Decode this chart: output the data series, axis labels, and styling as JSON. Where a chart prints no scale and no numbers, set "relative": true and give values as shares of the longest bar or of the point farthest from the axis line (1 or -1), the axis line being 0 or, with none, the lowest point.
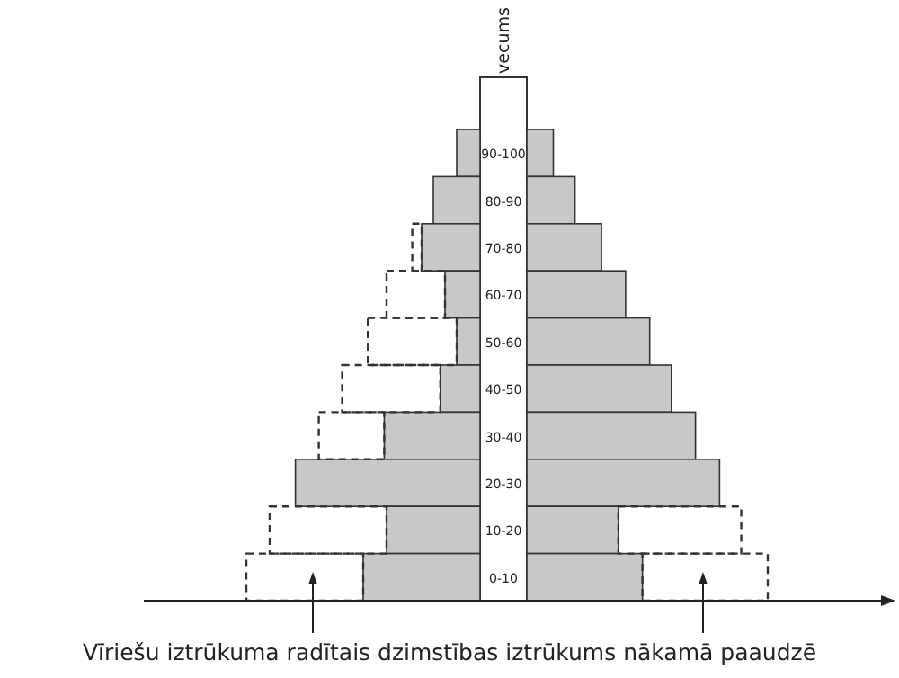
{
  "chart_data": [
    {
      "type": "bar",
      "orientation": "horizontal",
      "relative": true,
      "stacked": true,
      "ylabel": "vecums",
      "categories": [
        "90-100",
        "80-90",
        "70-80",
        "60-70",
        "50-60",
        "40-50",
        "30-40",
        "20-30",
        "10-20",
        "0-10"
      ],
      "series": [
        {
          "color": "#c8c8c8",
          "values": [
            -0.1,
            -0.2,
            -0.25,
            -0.15,
            -0.1,
            -0.17,
            -0.41,
            -0.79,
            -0.4,
            -0.5
          ]
        },
        {
          "color": "#333333",
          "line_style": "dashed",
          "values": [
            null,
            null,
            -0.04,
            -0.25,
            -0.38,
            -0.42,
            -0.28,
            null,
            -0.5,
            -0.5
          ]
        }
      ],
      "annotations": [
        "Vīriešu iztrūkuma radītais dzimstības iztrūkums nākamā paaudzē"
      ]
    },
    {
      "type": "bar",
      "orientation": "horizontal",
      "relative": true,
      "stacked": true,
      "categories": [
        null,
        null,
        null,
        null,
        null,
        null,
        null,
        null,
        null,
        null
      ],
      "series": [
        {
          "color": "#c8c8c8",
          "values": [
            0.11,
            0.2,
            0.31,
            0.41,
            0.51,
            0.6,
            0.7,
            0.8,
            0.38,
            0.48
          ]
        },
        {
          "color": "#333333",
          "line_style": "dashed",
          "values": [
            null,
            null,
            null,
            null,
            null,
            null,
            null,
            null,
            0.51,
            0.52
          ]
        }
      ]
    }
  ]
}
